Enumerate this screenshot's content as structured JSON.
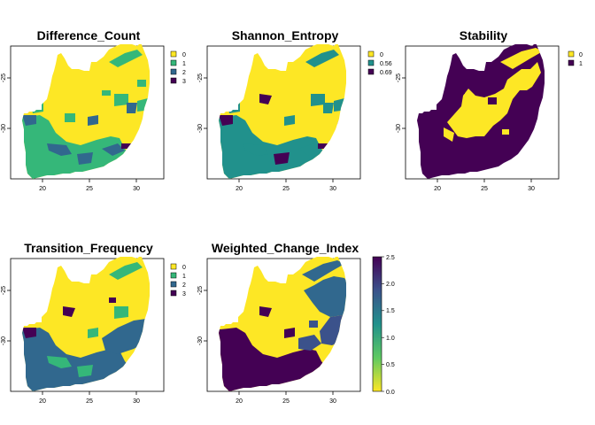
{
  "colors": {
    "yellow": "#fde725",
    "green": "#35b779",
    "teal": "#21918c",
    "steel": "#31688e",
    "navy": "#3b528b",
    "purple": "#440154",
    "grad_top": "#440154",
    "grad_mid1": "#31688e",
    "grad_mid2": "#35b779",
    "grad_bottom": "#fde725"
  },
  "chart_data": [
    {
      "type": "raster-map",
      "title": "Difference_Count",
      "x_ticks": [
        "20",
        "25",
        "30"
      ],
      "y_ticks": [
        "-25",
        "-30"
      ],
      "legend": [
        {
          "label": "0",
          "color": "#fde725"
        },
        {
          "label": "1",
          "color": "#35b779"
        },
        {
          "label": "2",
          "color": "#31688e"
        },
        {
          "label": "3",
          "color": "#440154"
        }
      ]
    },
    {
      "type": "raster-map",
      "title": "Shannon_Entropy",
      "x_ticks": [
        "20",
        "25",
        "30"
      ],
      "y_ticks": [
        "-25",
        "-30"
      ],
      "legend": [
        {
          "label": "0",
          "color": "#fde725"
        },
        {
          "label": "0.56",
          "color": "#21918c"
        },
        {
          "label": "0.69",
          "color": "#440154"
        }
      ]
    },
    {
      "type": "raster-map",
      "title": "Stability",
      "x_ticks": [
        "20",
        "25",
        "30"
      ],
      "y_ticks": [
        "-25",
        "-30"
      ],
      "legend": [
        {
          "label": "0",
          "color": "#fde725"
        },
        {
          "label": "1",
          "color": "#440154"
        }
      ]
    },
    {
      "type": "raster-map",
      "title": "Transition_Frequency",
      "x_ticks": [
        "20",
        "25",
        "30"
      ],
      "y_ticks": [
        "-25",
        "-30"
      ],
      "legend": [
        {
          "label": "0",
          "color": "#fde725"
        },
        {
          "label": "1",
          "color": "#35b779"
        },
        {
          "label": "2",
          "color": "#31688e"
        },
        {
          "label": "3",
          "color": "#440154"
        }
      ]
    },
    {
      "type": "raster-map",
      "title": "Weighted_Change_Index",
      "x_ticks": [
        "20",
        "25",
        "30"
      ],
      "y_ticks": [
        "-25",
        "-30"
      ],
      "colorbar_ticks": [
        "2.5",
        "2.0",
        "1.5",
        "1.0",
        "0.5",
        "0.0"
      ],
      "colorbar_range": [
        0,
        2.5
      ]
    }
  ]
}
